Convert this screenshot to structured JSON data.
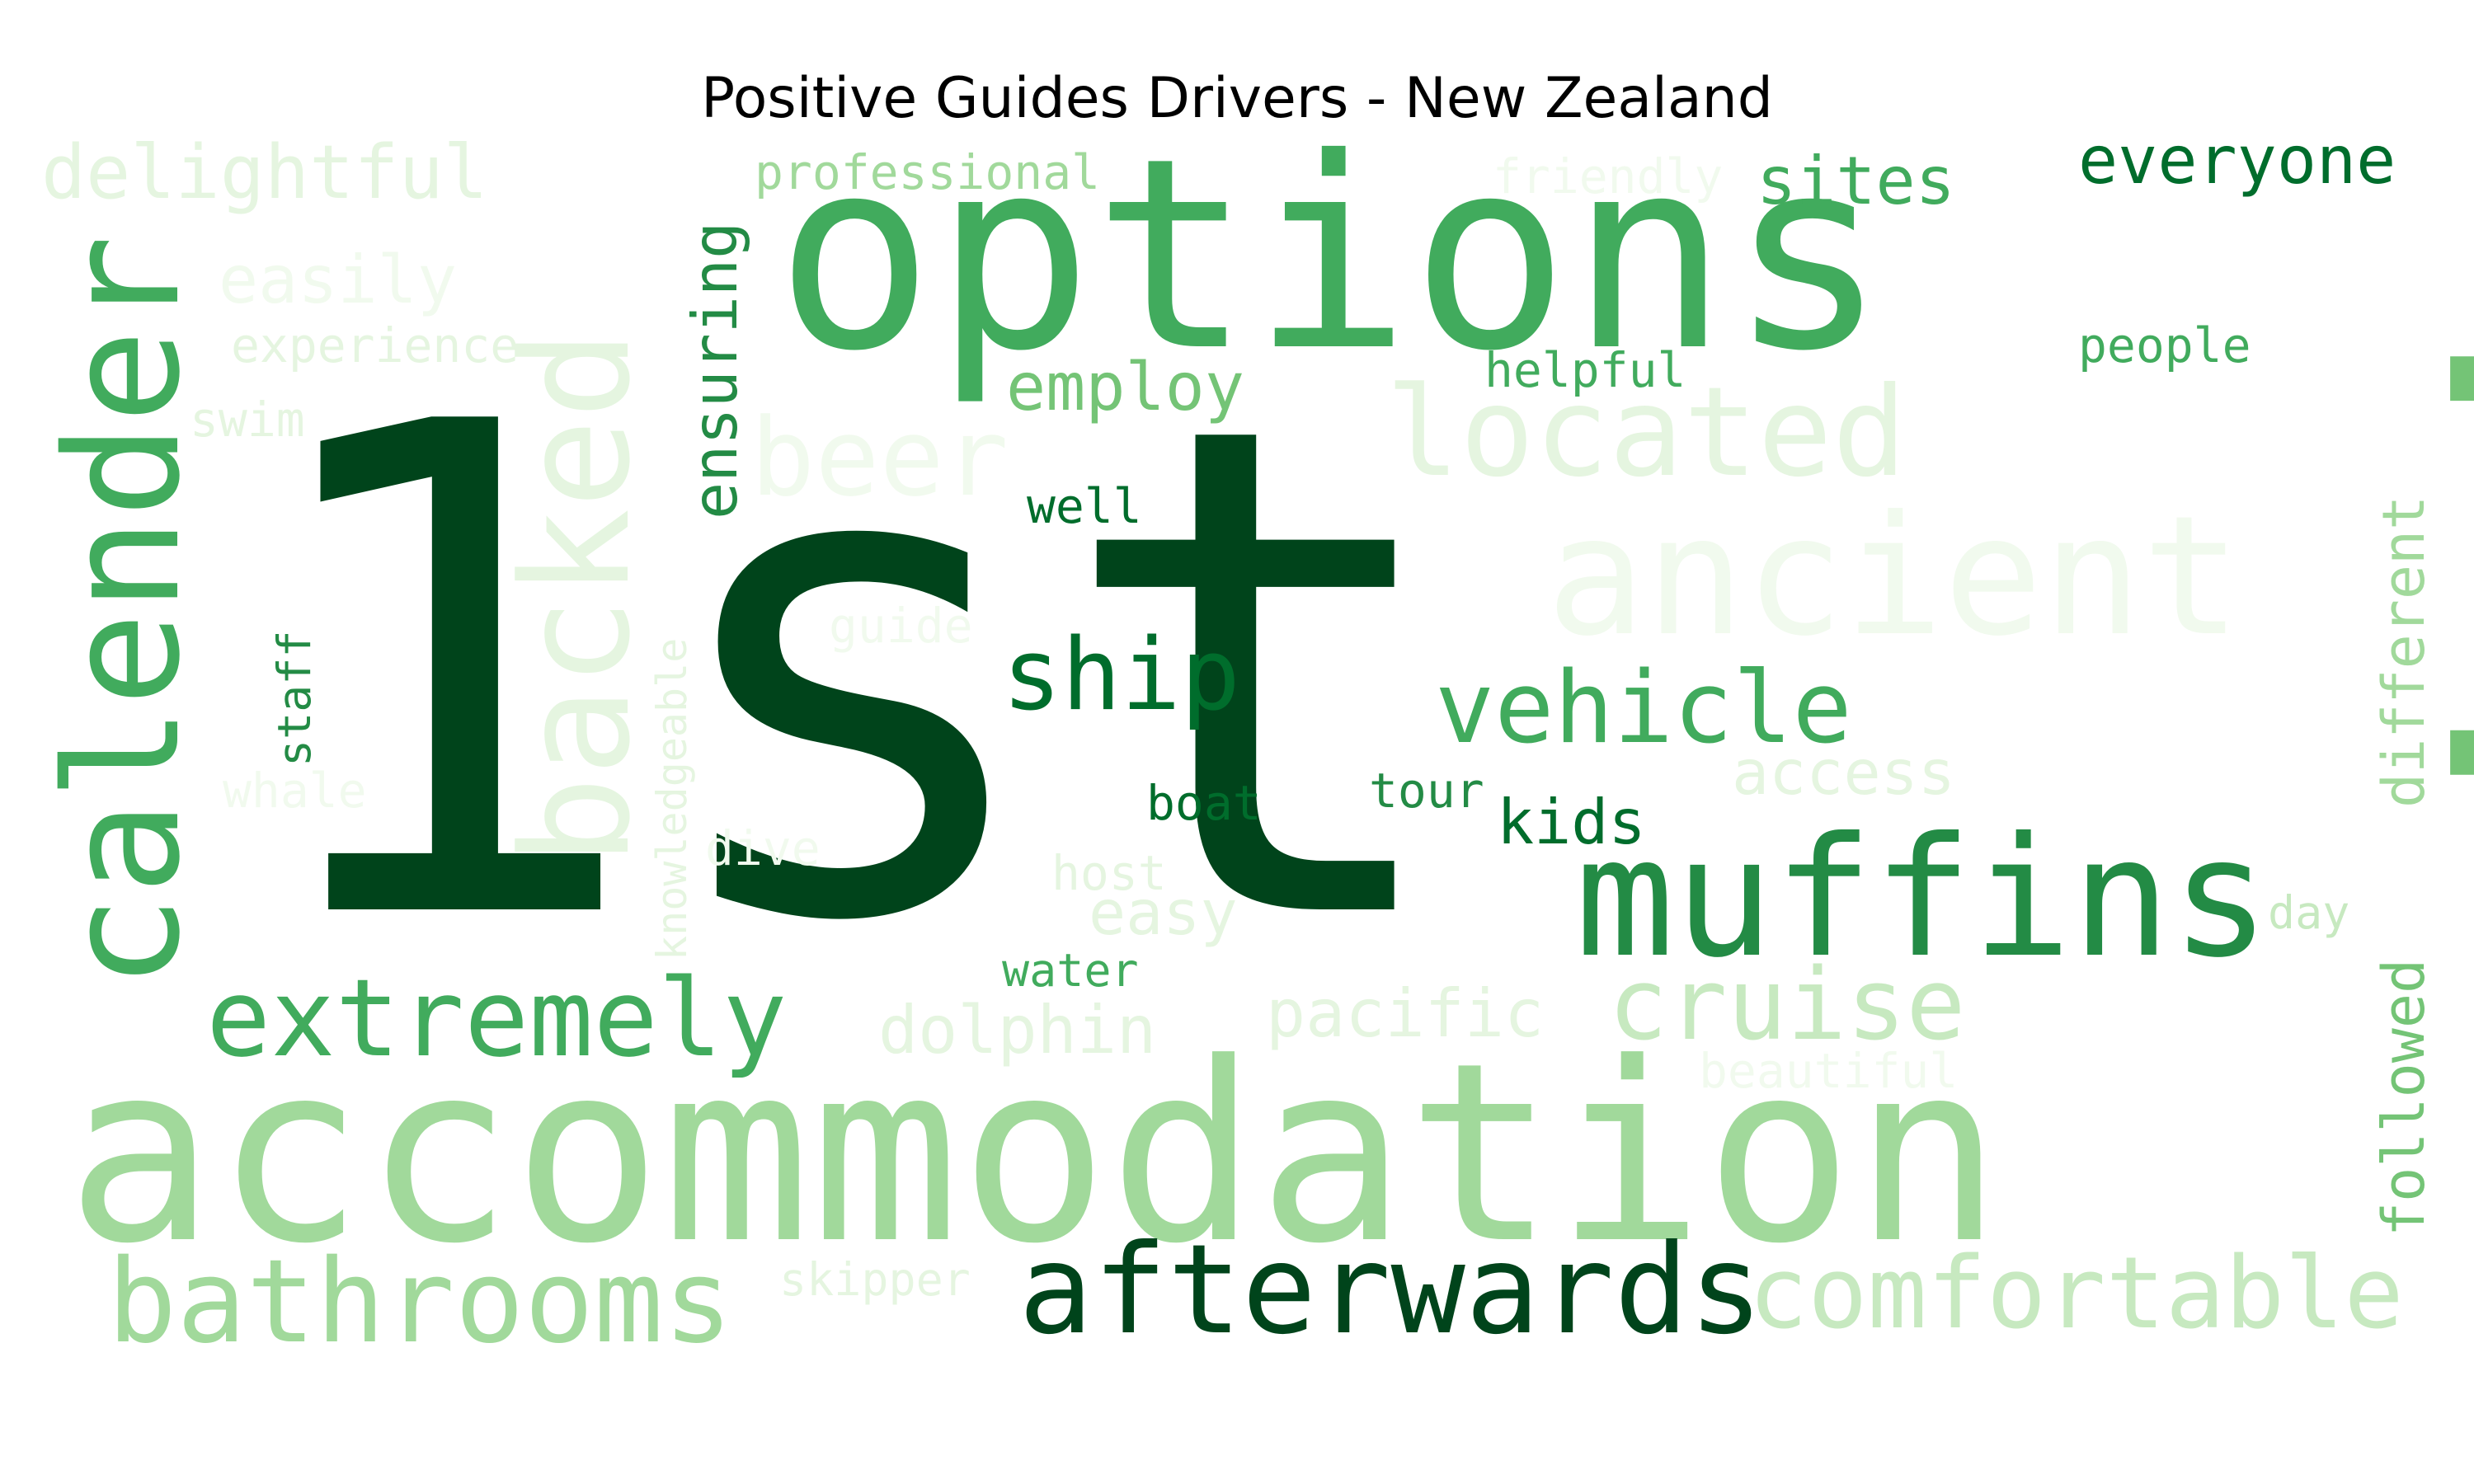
{
  "title": "Positive Guides Drivers - New Zealand",
  "palette": {
    "g1": "#00441b",
    "g2": "#006d2c",
    "g3": "#238b45",
    "g4": "#41ab5d",
    "g5": "#74c476",
    "g6": "#a1d99b",
    "g7": "#c7e9c0",
    "g8": "#e5f5e0",
    "g9": "#f1faee"
  },
  "words": [
    {
      "text": "1st",
      "color": "g1",
      "rotated": false
    },
    {
      "text": "aid",
      "color": "g5",
      "rotated": true
    },
    {
      "text": "options",
      "color": "g4",
      "rotated": false
    },
    {
      "text": "accommodation",
      "color": "g6",
      "rotated": false
    },
    {
      "text": "calender",
      "color": "g4",
      "rotated": true
    },
    {
      "text": "muffins",
      "color": "g3",
      "rotated": false
    },
    {
      "text": "backed",
      "color": "g8",
      "rotated": true
    },
    {
      "text": "ancient",
      "color": "g9",
      "rotated": false
    },
    {
      "text": "afterwards",
      "color": "g1",
      "rotated": false
    },
    {
      "text": "comfortable",
      "color": "g7",
      "rotated": false
    },
    {
      "text": "bathrooms",
      "color": "g6",
      "rotated": false
    },
    {
      "text": "extremely",
      "color": "g4",
      "rotated": false
    },
    {
      "text": "located",
      "color": "g8",
      "rotated": false
    },
    {
      "text": "cruise",
      "color": "g7",
      "rotated": false
    },
    {
      "text": "vehicle",
      "color": "g4",
      "rotated": false
    },
    {
      "text": "beer",
      "color": "g9",
      "rotated": false
    },
    {
      "text": "delightful",
      "color": "g8",
      "rotated": false
    },
    {
      "text": "ship",
      "color": "g2",
      "rotated": false
    },
    {
      "text": "everyone",
      "color": "g2",
      "rotated": false
    },
    {
      "text": "sites",
      "color": "g4",
      "rotated": false
    },
    {
      "text": "ensuring",
      "color": "g3",
      "rotated": true
    },
    {
      "text": "employ",
      "color": "g5",
      "rotated": false
    },
    {
      "text": "easily",
      "color": "g9",
      "rotated": false
    },
    {
      "text": "dolphin",
      "color": "g8",
      "rotated": false
    },
    {
      "text": "pacific",
      "color": "g8",
      "rotated": false
    },
    {
      "text": "different",
      "color": "g6",
      "rotated": true
    },
    {
      "text": "followed",
      "color": "g5",
      "rotated": true
    },
    {
      "text": "access",
      "color": "g8",
      "rotated": false
    },
    {
      "text": "kids",
      "color": "g2",
      "rotated": false
    },
    {
      "text": "easy",
      "color": "g8",
      "rotated": false
    },
    {
      "text": "professional",
      "color": "g6",
      "rotated": false
    },
    {
      "text": "friendly",
      "color": "g9",
      "rotated": false
    },
    {
      "text": "experience",
      "color": "g8",
      "rotated": false
    },
    {
      "text": "people",
      "color": "g4",
      "rotated": false
    },
    {
      "text": "helpful",
      "color": "g4",
      "rotated": false
    },
    {
      "text": "swim",
      "color": "g8",
      "rotated": false
    },
    {
      "text": "well",
      "color": "g2",
      "rotated": false
    },
    {
      "text": "guide",
      "color": "g9",
      "rotated": false
    },
    {
      "text": "staff",
      "color": "g3",
      "rotated": true
    },
    {
      "text": "knowledgeable",
      "color": "g8",
      "rotated": true
    },
    {
      "text": "whale",
      "color": "g9",
      "rotated": false
    },
    {
      "text": "dive",
      "color": "g9",
      "rotated": false
    },
    {
      "text": "host",
      "color": "g8",
      "rotated": false
    },
    {
      "text": "boat",
      "color": "g2",
      "rotated": false
    },
    {
      "text": "tour",
      "color": "g3",
      "rotated": false
    },
    {
      "text": "water",
      "color": "g4",
      "rotated": false
    },
    {
      "text": "day",
      "color": "g7",
      "rotated": false
    },
    {
      "text": "beautiful",
      "color": "g9",
      "rotated": false
    },
    {
      "text": "skipper",
      "color": "g8",
      "rotated": false
    }
  ]
}
